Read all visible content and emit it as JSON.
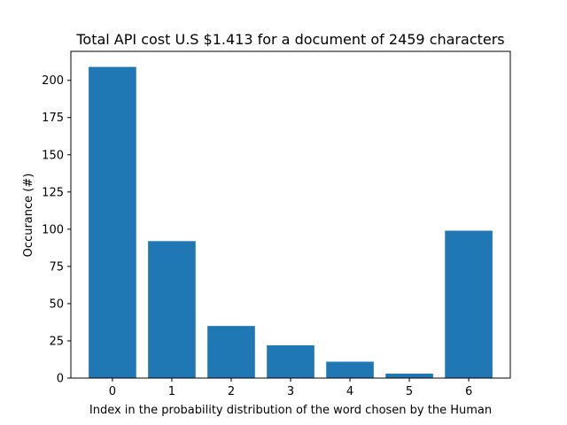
{
  "chart_data": {
    "type": "bar",
    "title": "Total API cost U.S $1.413 for a document of 2459 characters",
    "xlabel": "Index in the probability distribution of the word chosen by the Human",
    "ylabel": "Occurance (#)",
    "categories": [
      "0",
      "1",
      "2",
      "3",
      "4",
      "5",
      "6"
    ],
    "values": [
      209,
      92,
      35,
      22,
      11,
      3,
      99
    ],
    "ylim": [
      0,
      219.45
    ],
    "yticks": [
      "0",
      "25",
      "50",
      "75",
      "100",
      "125",
      "150",
      "175",
      "200"
    ],
    "bar_color": "#1f77b4",
    "grid": false
  }
}
